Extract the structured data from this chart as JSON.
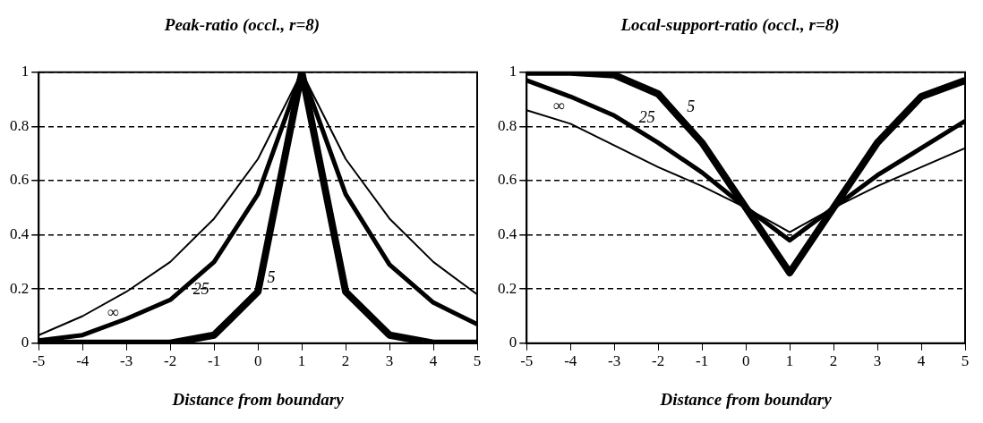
{
  "chart_data": [
    {
      "type": "line",
      "title": "Peak-ratio (occl., r=8)",
      "xlabel": "Distance from boundary",
      "x": [
        -5,
        -4,
        -3,
        -2,
        -1,
        0,
        1,
        2,
        3,
        4,
        5
      ],
      "xlim": [
        -5,
        5
      ],
      "xticks": [
        -5,
        -4,
        -3,
        -2,
        -1,
        0,
        1,
        2,
        3,
        4,
        5
      ],
      "ylim": [
        0,
        1
      ],
      "yticks": [
        0,
        0.2,
        0.4,
        0.6,
        0.8,
        1
      ],
      "grid": "y",
      "legend": false,
      "marker": "none",
      "series": [
        {
          "name": "∞",
          "color": "#000000",
          "values": [
            0.03,
            0.1,
            0.19,
            0.3,
            0.46,
            0.68,
            1,
            0.68,
            0.46,
            0.3,
            0.18
          ]
        },
        {
          "name": "25",
          "color": "#000000",
          "values": [
            0.01,
            0.03,
            0.09,
            0.16,
            0.3,
            0.55,
            1,
            0.55,
            0.29,
            0.15,
            0.07
          ]
        },
        {
          "name": "5",
          "color": "#000000",
          "values": [
            0,
            0,
            0,
            0,
            0.03,
            0.19,
            1,
            0.19,
            0.03,
            0,
            0
          ]
        }
      ]
    },
    {
      "type": "line",
      "title": "Local-support-ratio (occl., r=8)",
      "xlabel": "Distance from boundary",
      "x": [
        -5,
        -4,
        -3,
        -2,
        -1,
        0,
        1,
        2,
        3,
        4,
        5
      ],
      "xlim": [
        -5,
        5
      ],
      "xticks": [
        -5,
        -4,
        -3,
        -2,
        -1,
        0,
        1,
        2,
        3,
        4,
        5
      ],
      "ylim": [
        0,
        1
      ],
      "yticks": [
        0,
        0.2,
        0.4,
        0.6,
        0.8,
        1
      ],
      "grid": "y",
      "legend": false,
      "marker": "none",
      "series": [
        {
          "name": "∞",
          "color": "#000000",
          "values": [
            0.86,
            0.81,
            0.73,
            0.65,
            0.58,
            0.5,
            0.41,
            0.5,
            0.58,
            0.65,
            0.72
          ]
        },
        {
          "name": "25",
          "color": "#000000",
          "values": [
            0.97,
            0.91,
            0.84,
            0.74,
            0.63,
            0.5,
            0.38,
            0.5,
            0.62,
            0.72,
            0.82
          ]
        },
        {
          "name": "5",
          "color": "#000000",
          "values": [
            1,
            1,
            0.99,
            0.92,
            0.74,
            0.5,
            0.26,
            0.5,
            0.74,
            0.91,
            0.97
          ]
        }
      ]
    }
  ]
}
